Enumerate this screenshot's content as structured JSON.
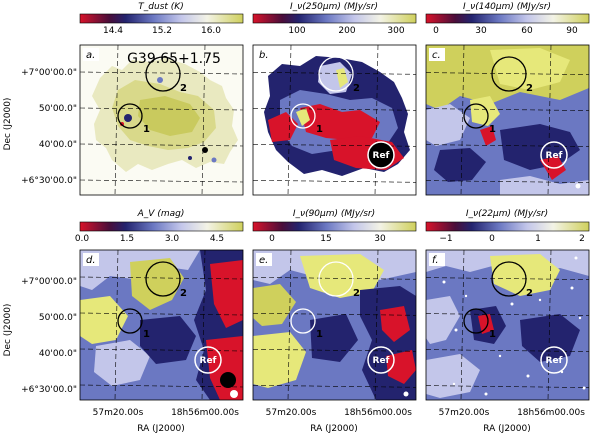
{
  "figure": {
    "object_title": "G39.65+1.75",
    "ref_label": "Ref",
    "source_1": "1",
    "source_2": "2",
    "dec_axis_label": "Dec (J2000)",
    "ra_axis_label": "RA (J2000)",
    "dec_ticks": [
      "+7°00'00.0\"",
      "50'00.0\"",
      "40'00.0\"",
      "+6°30'00.0\""
    ],
    "ra_ticks": [
      "57m20.00s",
      "18h56m00.00s"
    ]
  },
  "panels": [
    {
      "label": "a.",
      "title": "T_dust (K)",
      "cbar_ticks": [
        "14.4",
        "15.2",
        "16.0"
      ],
      "cmap": "ref"
    },
    {
      "label": "b.",
      "title": "I_ν(250μm) (MJy/sr)",
      "cbar_ticks": [
        "100",
        "200",
        "300"
      ],
      "cmap": "ref"
    },
    {
      "label": "c.",
      "title": "I_ν(140μm) (MJy/sr)",
      "cbar_ticks": [
        "0",
        "30",
        "60",
        "90"
      ],
      "cmap": "ref"
    },
    {
      "label": "d.",
      "title": "A_V (mag)",
      "cbar_ticks": [
        "0.0",
        "1.5",
        "3.0",
        "4.5"
      ],
      "cmap": "ref"
    },
    {
      "label": "e.",
      "title": "I_ν(90μm) (MJy/sr)",
      "cbar_ticks": [
        "0",
        "15",
        "30"
      ],
      "cmap": "ref"
    },
    {
      "label": "f.",
      "title": "I_ν(22μm) (MJy/sr)",
      "cbar_ticks": [
        "−1",
        "0",
        "1",
        "2"
      ],
      "cmap": "ref"
    }
  ],
  "colors": {
    "red": "#d8132a",
    "navy": "#23236e",
    "blue": "#6b78c2",
    "lav": "#c3c6ea",
    "cream": "#efeed2",
    "olive": "#cfd05c",
    "yellow": "#e6e87a"
  }
}
